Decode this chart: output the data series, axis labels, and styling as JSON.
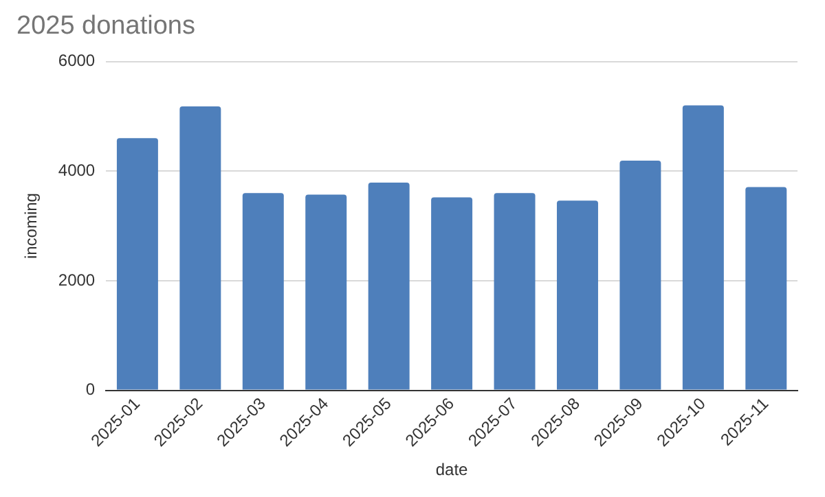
{
  "chart_data": {
    "type": "bar",
    "title": "2025 donations",
    "xlabel": "date",
    "ylabel": "incoming",
    "categories": [
      "2025-01",
      "2025-02",
      "2025-03",
      "2025-04",
      "2025-05",
      "2025-06",
      "2025-07",
      "2025-08",
      "2025-09",
      "2025-10",
      "2025-11"
    ],
    "values": [
      4600,
      5180,
      3600,
      3570,
      3790,
      3520,
      3600,
      3460,
      4190,
      5200,
      3710
    ],
    "color": "#4e7fbb",
    "ylim": [
      0,
      6000
    ],
    "yticks": [
      0,
      2000,
      4000,
      6000
    ],
    "grid": "y",
    "legend": false
  }
}
